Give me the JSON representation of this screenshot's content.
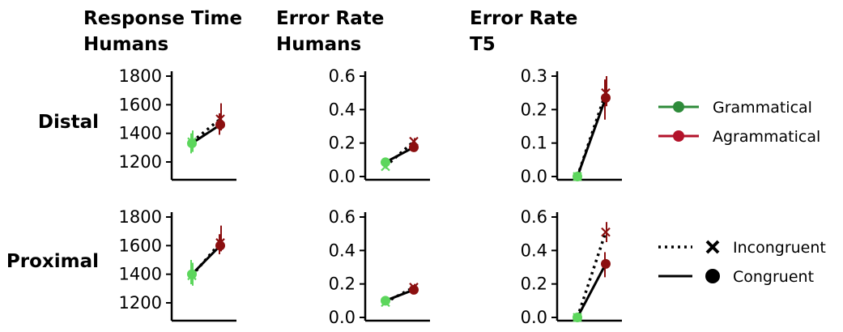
{
  "colors": {
    "grammatical_point": "#5cd65c",
    "agrammatical_point": "#8b0f10",
    "grammatical_legend": "#2e8b3a",
    "agrammatical_legend": "#b3122a",
    "line": "#000000"
  },
  "column_titles": [
    {
      "line1": "Response Time",
      "line2": "Humans"
    },
    {
      "line1": "Error Rate",
      "line2": "Humans"
    },
    {
      "line1": "Error Rate",
      "line2": "T5"
    }
  ],
  "row_labels": [
    "Distal",
    "Proximal"
  ],
  "legend": {
    "grammatical": "Grammatical",
    "agrammatical": "Agrammatical",
    "incongruent": "Incongruent",
    "congruent": "Congruent"
  },
  "chart_data": [
    {
      "type": "line",
      "row": "Distal",
      "column": "Response Time Humans",
      "ylim": [
        1100,
        1800
      ],
      "yticks": [
        "1200",
        "1400",
        "1600",
        "1800"
      ],
      "series": [
        {
          "name": "Congruent",
          "style": "solid",
          "marker": "circle",
          "points": [
            {
              "category": "Grammatical",
              "y": 1330,
              "err": [
                1260,
                1400
              ]
            },
            {
              "category": "Agrammatical",
              "y": 1460,
              "err": [
                1390,
                1540
              ]
            }
          ]
        },
        {
          "name": "Incongruent",
          "style": "dotted",
          "marker": "x",
          "points": [
            {
              "category": "Grammatical",
              "y": 1340,
              "err": [
                1270,
                1420
              ]
            },
            {
              "category": "Agrammatical",
              "y": 1500,
              "err": [
                1420,
                1610
              ]
            }
          ]
        }
      ]
    },
    {
      "type": "line",
      "row": "Distal",
      "column": "Error Rate Humans",
      "ylim": [
        0,
        0.6
      ],
      "yticks": [
        "0.0",
        "0.2",
        "0.4",
        "0.6"
      ],
      "series": [
        {
          "name": "Congruent",
          "style": "solid",
          "marker": "circle",
          "points": [
            {
              "category": "Grammatical",
              "y": 0.085,
              "err": [
                0.07,
                0.1
              ]
            },
            {
              "category": "Agrammatical",
              "y": 0.175,
              "err": [
                0.16,
                0.19
              ]
            }
          ]
        },
        {
          "name": "Incongruent",
          "style": "dotted",
          "marker": "x",
          "points": [
            {
              "category": "Grammatical",
              "y": 0.06,
              "err": [
                0.045,
                0.075
              ]
            },
            {
              "category": "Agrammatical",
              "y": 0.21,
              "err": [
                0.19,
                0.23
              ]
            }
          ]
        }
      ]
    },
    {
      "type": "line",
      "row": "Distal",
      "column": "Error Rate T5",
      "ylim": [
        0,
        0.3
      ],
      "yticks": [
        "0.0",
        "0.1",
        "0.2",
        "0.3"
      ],
      "series": [
        {
          "name": "Congruent",
          "style": "solid",
          "marker": "circle",
          "points": [
            {
              "category": "Grammatical",
              "y": 0.0,
              "err": [
                0,
                0
              ]
            },
            {
              "category": "Agrammatical",
              "y": 0.235,
              "err": [
                0.17,
                0.29
              ]
            }
          ]
        },
        {
          "name": "Incongruent",
          "style": "dotted",
          "marker": "x",
          "points": [
            {
              "category": "Grammatical",
              "y": 0.0,
              "err": [
                0,
                0
              ]
            },
            {
              "category": "Agrammatical",
              "y": 0.25,
              "err": [
                0.21,
                0.3
              ]
            }
          ]
        }
      ]
    },
    {
      "type": "line",
      "row": "Proximal",
      "column": "Response Time Humans",
      "ylim": [
        1100,
        1800
      ],
      "yticks": [
        "1200",
        "1400",
        "1600",
        "1800"
      ],
      "series": [
        {
          "name": "Congruent",
          "style": "solid",
          "marker": "circle",
          "points": [
            {
              "category": "Grammatical",
              "y": 1400,
              "err": [
                1330,
                1500
              ]
            },
            {
              "category": "Agrammatical",
              "y": 1600,
              "err": [
                1540,
                1680
              ]
            }
          ]
        },
        {
          "name": "Incongruent",
          "style": "dotted",
          "marker": "x",
          "points": [
            {
              "category": "Grammatical",
              "y": 1390,
              "err": [
                1320,
                1480
              ]
            },
            {
              "category": "Agrammatical",
              "y": 1620,
              "err": [
                1560,
                1740
              ]
            }
          ]
        }
      ]
    },
    {
      "type": "line",
      "row": "Proximal",
      "column": "Error Rate Humans",
      "ylim": [
        0,
        0.6
      ],
      "yticks": [
        "0.0",
        "0.2",
        "0.4",
        "0.6"
      ],
      "series": [
        {
          "name": "Congruent",
          "style": "solid",
          "marker": "circle",
          "points": [
            {
              "category": "Grammatical",
              "y": 0.1,
              "err": [
                0.085,
                0.115
              ]
            },
            {
              "category": "Agrammatical",
              "y": 0.165,
              "err": [
                0.15,
                0.18
              ]
            }
          ]
        },
        {
          "name": "Incongruent",
          "style": "dotted",
          "marker": "x",
          "points": [
            {
              "category": "Grammatical",
              "y": 0.09,
              "err": [
                0.075,
                0.105
              ]
            },
            {
              "category": "Agrammatical",
              "y": 0.18,
              "err": [
                0.165,
                0.2
              ]
            }
          ]
        }
      ]
    },
    {
      "type": "line",
      "row": "Proximal",
      "column": "Error Rate T5",
      "ylim": [
        0,
        0.6
      ],
      "yticks": [
        "0.0",
        "0.2",
        "0.4",
        "0.6"
      ],
      "series": [
        {
          "name": "Congruent",
          "style": "solid",
          "marker": "circle",
          "points": [
            {
              "category": "Grammatical",
              "y": 0.0,
              "err": [
                0,
                0
              ]
            },
            {
              "category": "Agrammatical",
              "y": 0.32,
              "err": [
                0.24,
                0.39
              ]
            }
          ]
        },
        {
          "name": "Incongruent",
          "style": "dotted",
          "marker": "x",
          "points": [
            {
              "category": "Grammatical",
              "y": 0.0,
              "err": [
                0,
                0
              ]
            },
            {
              "category": "Agrammatical",
              "y": 0.51,
              "err": [
                0.45,
                0.57
              ]
            }
          ]
        }
      ]
    }
  ]
}
